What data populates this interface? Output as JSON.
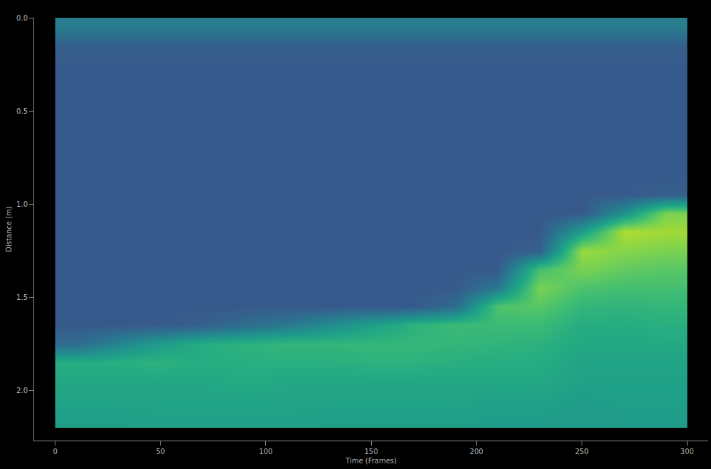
{
  "chart_data": {
    "type": "heatmap",
    "x_label": "Time (Frames)",
    "y_label": "Distance (m)",
    "color": "Viridis",
    "grid": false,
    "xlim": [
      -10,
      310
    ],
    "xticks": [
      0,
      50,
      100,
      150,
      200,
      250,
      300
    ],
    "ylim": [
      2.27,
      0
    ],
    "yticks": [
      {
        "value": 0,
        "label": "0.0"
      },
      {
        "value": 0.5,
        "label": "0.5"
      },
      {
        "value": 1,
        "label": "1.0"
      },
      {
        "value": 1.5,
        "label": "1.5"
      },
      {
        "value": 2,
        "label": "2.0"
      }
    ],
    "zlim": [
      0,
      1
    ],
    "x": [
      10,
      30,
      50,
      70,
      90,
      110,
      130,
      150,
      170,
      190,
      210,
      230,
      250,
      270,
      290
    ],
    "y": [
      0.05,
      0.15,
      0.25,
      0.35,
      0.45,
      0.55,
      0.65,
      0.75,
      0.85,
      0.95,
      1.05,
      1.15,
      1.25,
      1.35,
      1.45,
      1.55,
      1.65,
      1.75,
      1.85,
      1.95,
      2.05,
      2.15
    ],
    "z": [
      [
        0.42,
        0.42,
        0.42,
        0.42,
        0.42,
        0.42,
        0.42,
        0.42,
        0.42,
        0.42,
        0.42,
        0.42,
        0.42,
        0.42,
        0.42
      ],
      [
        0.3,
        0.3,
        0.3,
        0.3,
        0.3,
        0.3,
        0.3,
        0.3,
        0.3,
        0.3,
        0.3,
        0.3,
        0.3,
        0.3,
        0.3
      ],
      [
        0.28,
        0.28,
        0.28,
        0.28,
        0.28,
        0.28,
        0.28,
        0.28,
        0.28,
        0.28,
        0.28,
        0.28,
        0.28,
        0.28,
        0.28
      ],
      [
        0.28,
        0.28,
        0.28,
        0.28,
        0.28,
        0.28,
        0.28,
        0.28,
        0.28,
        0.28,
        0.28,
        0.28,
        0.28,
        0.28,
        0.28
      ],
      [
        0.28,
        0.28,
        0.28,
        0.28,
        0.28,
        0.28,
        0.28,
        0.28,
        0.28,
        0.28,
        0.28,
        0.28,
        0.28,
        0.28,
        0.28
      ],
      [
        0.28,
        0.28,
        0.28,
        0.28,
        0.28,
        0.28,
        0.28,
        0.28,
        0.28,
        0.28,
        0.28,
        0.28,
        0.28,
        0.28,
        0.28
      ],
      [
        0.28,
        0.28,
        0.28,
        0.28,
        0.28,
        0.28,
        0.28,
        0.28,
        0.28,
        0.28,
        0.28,
        0.28,
        0.28,
        0.28,
        0.28
      ],
      [
        0.28,
        0.28,
        0.28,
        0.28,
        0.28,
        0.28,
        0.28,
        0.28,
        0.28,
        0.28,
        0.28,
        0.28,
        0.28,
        0.28,
        0.28
      ],
      [
        0.28,
        0.28,
        0.28,
        0.28,
        0.28,
        0.28,
        0.28,
        0.28,
        0.28,
        0.28,
        0.28,
        0.28,
        0.28,
        0.28,
        0.28
      ],
      [
        0.28,
        0.28,
        0.28,
        0.28,
        0.28,
        0.28,
        0.28,
        0.28,
        0.28,
        0.28,
        0.28,
        0.28,
        0.28,
        0.28,
        0.3
      ],
      [
        0.28,
        0.28,
        0.28,
        0.28,
        0.28,
        0.28,
        0.28,
        0.28,
        0.28,
        0.28,
        0.28,
        0.28,
        0.28,
        0.5,
        0.8
      ],
      [
        0.28,
        0.28,
        0.28,
        0.28,
        0.28,
        0.28,
        0.28,
        0.28,
        0.28,
        0.28,
        0.28,
        0.28,
        0.55,
        0.88,
        0.86
      ],
      [
        0.28,
        0.28,
        0.28,
        0.28,
        0.28,
        0.28,
        0.28,
        0.28,
        0.28,
        0.28,
        0.28,
        0.3,
        0.85,
        0.82,
        0.8
      ],
      [
        0.28,
        0.28,
        0.28,
        0.28,
        0.28,
        0.28,
        0.28,
        0.28,
        0.28,
        0.28,
        0.28,
        0.7,
        0.8,
        0.76,
        0.74
      ],
      [
        0.28,
        0.28,
        0.28,
        0.28,
        0.28,
        0.28,
        0.28,
        0.28,
        0.28,
        0.28,
        0.4,
        0.8,
        0.72,
        0.7,
        0.7
      ],
      [
        0.28,
        0.28,
        0.28,
        0.28,
        0.28,
        0.28,
        0.28,
        0.28,
        0.28,
        0.35,
        0.72,
        0.74,
        0.66,
        0.65,
        0.66
      ],
      [
        0.28,
        0.28,
        0.28,
        0.3,
        0.35,
        0.4,
        0.48,
        0.56,
        0.64,
        0.68,
        0.68,
        0.68,
        0.62,
        0.62,
        0.63
      ],
      [
        0.35,
        0.45,
        0.55,
        0.62,
        0.64,
        0.66,
        0.66,
        0.66,
        0.66,
        0.66,
        0.65,
        0.64,
        0.6,
        0.6,
        0.6
      ],
      [
        0.62,
        0.63,
        0.64,
        0.62,
        0.63,
        0.63,
        0.63,
        0.64,
        0.64,
        0.63,
        0.62,
        0.62,
        0.58,
        0.58,
        0.58
      ],
      [
        0.6,
        0.6,
        0.6,
        0.6,
        0.61,
        0.6,
        0.6,
        0.6,
        0.6,
        0.6,
        0.6,
        0.6,
        0.57,
        0.57,
        0.57
      ],
      [
        0.58,
        0.58,
        0.58,
        0.58,
        0.58,
        0.58,
        0.58,
        0.58,
        0.58,
        0.58,
        0.57,
        0.57,
        0.55,
        0.56,
        0.56
      ],
      [
        0.56,
        0.56,
        0.57,
        0.57,
        0.57,
        0.57,
        0.56,
        0.56,
        0.56,
        0.56,
        0.55,
        0.55,
        0.54,
        0.55,
        0.55
      ]
    ]
  }
}
